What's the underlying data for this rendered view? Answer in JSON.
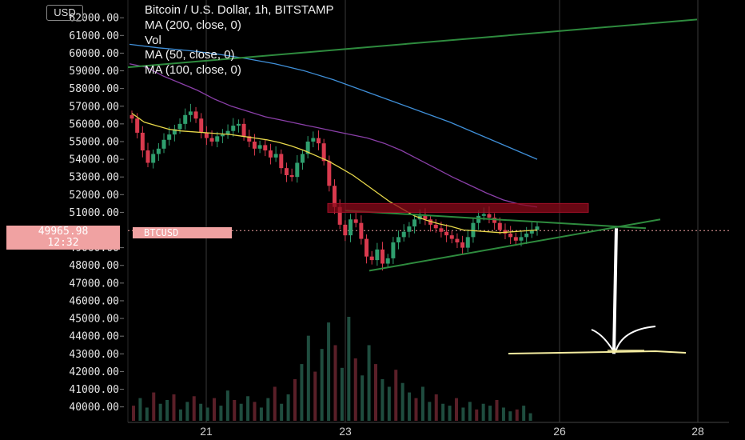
{
  "header": {
    "title": "Bitcoin / U.S. Dollar, 1h, BITSTAMP",
    "currency": "USD"
  },
  "legend": [
    "MA (200, close, 0)",
    "Vol",
    "MA (50, close, 0)",
    "MA (100, close, 0)"
  ],
  "price_tag": {
    "price": "49965.98",
    "countdown": "12:32"
  },
  "symbol_tag": "BTCUSD",
  "chart_data": {
    "type": "candlestick",
    "y_ticks": [
      "62000.00",
      "61000.00",
      "60000.00",
      "59000.00",
      "58000.00",
      "57000.00",
      "56000.00",
      "55000.00",
      "54000.00",
      "53000.00",
      "52000.00",
      "51000.00",
      "49000.00",
      "48000.00",
      "47000.00",
      "46000.00",
      "45000.00",
      "44000.00",
      "43000.00",
      "42000.00",
      "41000.00",
      "40000.00"
    ],
    "y_tick_values": [
      62000,
      61000,
      60000,
      59000,
      58000,
      57000,
      56000,
      55000,
      54000,
      53000,
      52000,
      51000,
      49000,
      48000,
      47000,
      46000,
      45000,
      44000,
      43000,
      42000,
      41000,
      40000
    ],
    "x_ticks": [
      "21",
      "23",
      "26",
      "28"
    ],
    "ylim": [
      39400,
      62600
    ],
    "current_price": 49965.98,
    "closes": [
      56300,
      55500,
      54500,
      53800,
      54300,
      54600,
      55100,
      55400,
      55700,
      56000,
      56500,
      56700,
      56300,
      55500,
      55200,
      55000,
      55300,
      55400,
      55600,
      55900,
      56000,
      55300,
      55000,
      54600,
      54800,
      54500,
      54100,
      54300,
      53500,
      53100,
      53000,
      53800,
      54300,
      55000,
      55200,
      54900,
      53900,
      52500,
      51300,
      50300,
      49700,
      50600,
      50400,
      49500,
      48500,
      48300,
      48900,
      48100,
      48400,
      49300,
      49600,
      49900,
      50200,
      50600,
      50800,
      50600,
      50300,
      50100,
      49900,
      49700,
      49500,
      49300,
      49000,
      49600,
      50400,
      50800,
      50900,
      50700,
      50400,
      50000,
      49800,
      49600,
      49400,
      49600,
      49800,
      50000,
      50200
    ],
    "ma50": [
      56600,
      56100,
      55900,
      55700,
      55600,
      55550,
      55500,
      55450,
      55400,
      55300,
      55200,
      55100,
      54950,
      54750,
      54500,
      54200,
      53900,
      53500,
      53100,
      52600,
      52100,
      51600,
      51200,
      50800,
      50550,
      50350,
      50200,
      50000,
      49950,
      49900,
      49850,
      49900,
      49950,
      50000
    ],
    "ma100": [
      59400,
      59200,
      58700,
      58300,
      57900,
      57400,
      57000,
      56700,
      56400,
      56200,
      56000,
      55800,
      55600,
      55400,
      55200,
      54900,
      54500,
      54000,
      53500,
      53000,
      52550,
      52100,
      51700,
      51450,
      51300
    ],
    "ma200": [
      60500,
      60300,
      60150,
      59950,
      59700,
      59400,
      59000,
      58500,
      57900,
      57300,
      56700,
      56100,
      55400,
      54700,
      54000
    ],
    "volume": [
      8,
      12,
      7,
      15,
      9,
      11,
      14,
      6,
      10,
      13,
      9,
      7,
      12,
      8,
      16,
      11,
      9,
      13,
      10,
      7,
      12,
      18,
      9,
      14,
      22,
      30,
      45,
      26,
      38,
      52,
      40,
      28,
      55,
      33,
      24,
      40,
      30,
      22,
      18,
      27,
      20,
      15,
      12,
      18,
      10,
      14,
      9,
      8,
      12,
      7,
      10,
      6,
      9,
      8,
      11,
      7,
      5,
      6,
      8,
      4
    ]
  }
}
